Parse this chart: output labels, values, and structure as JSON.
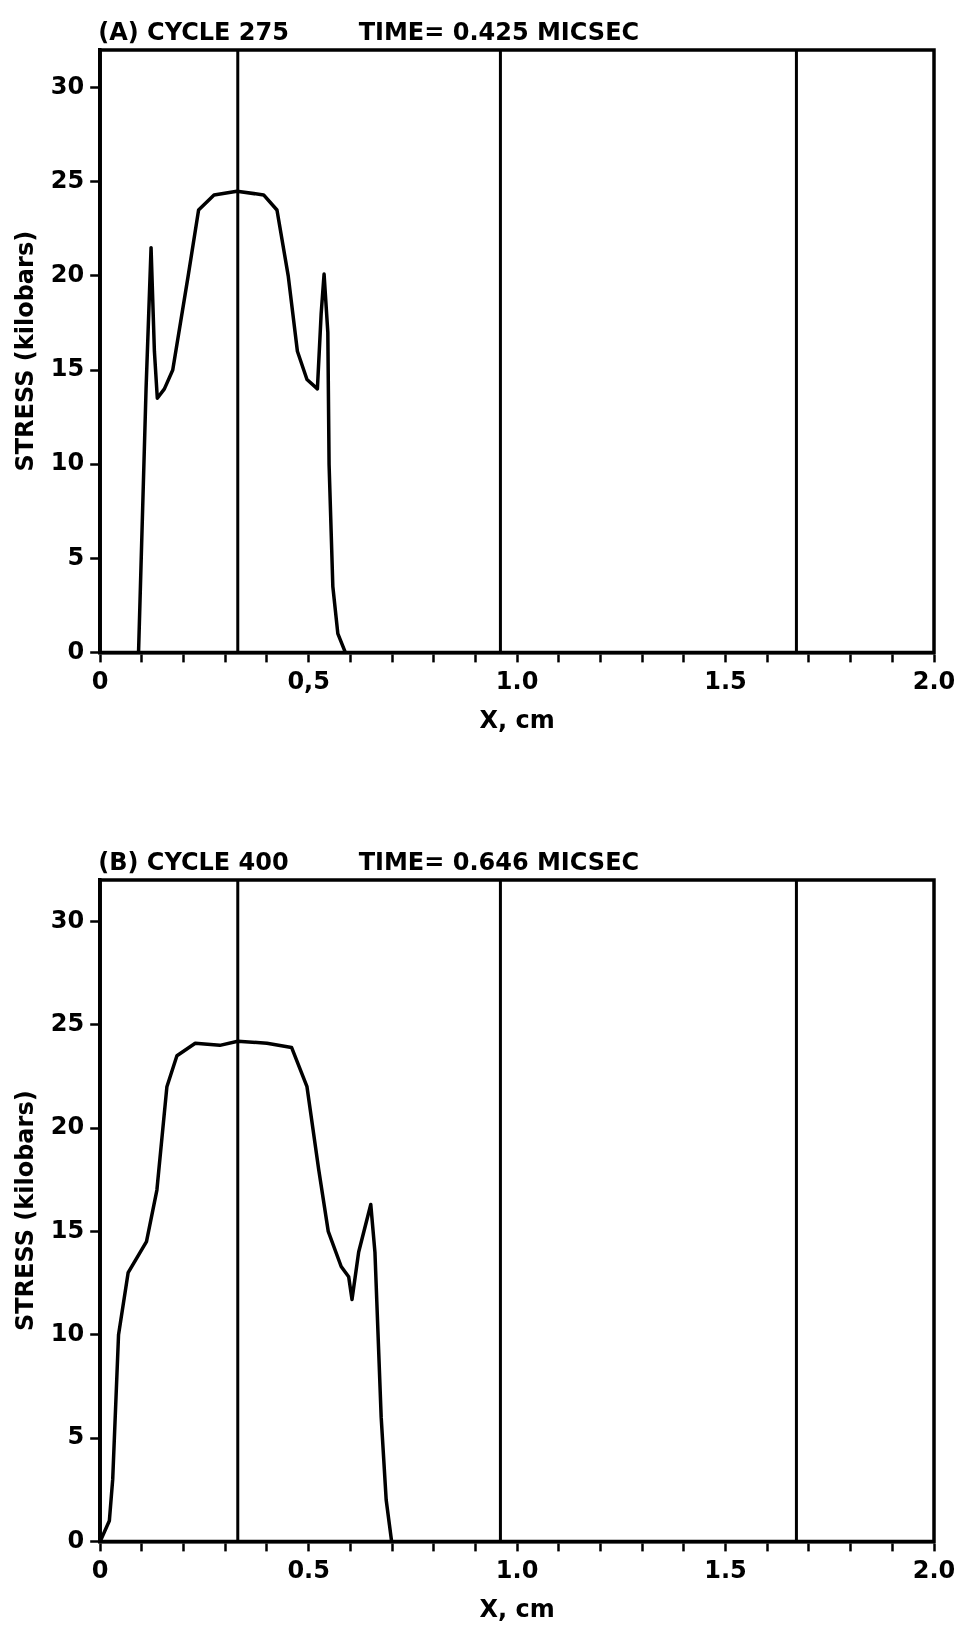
{
  "chart_data": [
    {
      "type": "line",
      "title": "(A) CYCLE 275",
      "subtitle": "TIME= 0.425 MICSEC",
      "xlabel": "X, cm",
      "ylabel": "STRESS (kilobars)",
      "series": [
        {
          "color": "#000000",
          "x": [
            0.092,
            0.11,
            0.122,
            0.13,
            0.137,
            0.154,
            0.174,
            0.211,
            0.236,
            0.273,
            0.328,
            0.392,
            0.424,
            0.451,
            0.473,
            0.496,
            0.521,
            0.53,
            0.537,
            0.546,
            0.549,
            0.558,
            0.57,
            0.588
          ],
          "values": [
            0,
            14,
            21.5,
            16,
            13.5,
            14,
            15,
            20,
            23.5,
            24.3,
            24.5,
            24.3,
            23.5,
            20,
            16,
            14.5,
            14,
            18,
            20.1,
            17,
            10,
            3.5,
            1,
            0
          ]
        }
      ],
      "xlim": [
        0,
        2
      ],
      "ylim": [
        0,
        32
      ],
      "xticks": [
        0,
        {
          "value": 0.1,
          "label": null
        },
        {
          "value": 0.2,
          "label": null
        },
        {
          "value": 0.3,
          "label": null
        },
        {
          "value": 0.4,
          "label": null
        },
        {
          "value": 0.5,
          "label": "0,5"
        },
        {
          "value": 0.6,
          "label": null
        },
        {
          "value": 0.7,
          "label": null
        },
        {
          "value": 0.8,
          "label": null
        },
        {
          "value": 0.9,
          "label": null
        },
        {
          "value": 1,
          "label": "1.0"
        },
        {
          "value": 1.1,
          "label": null
        },
        {
          "value": 1.2,
          "label": null
        },
        {
          "value": 1.3,
          "label": null
        },
        {
          "value": 1.4,
          "label": null
        },
        1.5,
        {
          "value": 1.6,
          "label": null
        },
        {
          "value": 1.7,
          "label": null
        },
        {
          "value": 1.8,
          "label": null
        },
        {
          "value": 1.9,
          "label": null
        },
        {
          "value": 2,
          "label": "2.0"
        }
      ],
      "yticks": [
        0,
        5,
        10,
        15,
        20,
        25,
        30
      ],
      "ref_lines": [
        {
          "axis": "x",
          "value": 0.33,
          "color": "#000000"
        },
        {
          "axis": "x",
          "value": 0.96,
          "color": "#000000"
        },
        {
          "axis": "x",
          "value": 1.67,
          "color": "#000000"
        }
      ],
      "grid": false,
      "legend": false,
      "marker": "none",
      "line_style": "solid"
    },
    {
      "type": "line",
      "title": "(B) CYCLE 400",
      "subtitle": "TIME= 0.646 MICSEC",
      "xlabel": "X, cm",
      "ylabel": "STRESS (kilobars)",
      "series": [
        {
          "color": "#000000",
          "x": [
            0,
            0.022,
            0.03,
            0.044,
            0.067,
            0.111,
            0.136,
            0.16,
            0.184,
            0.228,
            0.287,
            0.33,
            0.4,
            0.459,
            0.496,
            0.524,
            0.547,
            0.578,
            0.596,
            0.604,
            0.62,
            0.649,
            0.659,
            0.674,
            0.686,
            0.699
          ],
          "values": [
            0,
            1,
            3,
            10,
            13,
            14.5,
            17,
            22,
            23.5,
            24.1,
            24,
            24.2,
            24.1,
            23.9,
            22,
            18,
            15,
            13.3,
            12.8,
            11.7,
            14,
            16.3,
            14,
            6,
            2,
            0
          ]
        }
      ],
      "xlim": [
        0,
        2
      ],
      "ylim": [
        0,
        32
      ],
      "xticks": [
        0,
        {
          "value": 0.1,
          "label": null
        },
        {
          "value": 0.2,
          "label": null
        },
        {
          "value": 0.3,
          "label": null
        },
        {
          "value": 0.4,
          "label": null
        },
        0.5,
        {
          "value": 0.6,
          "label": null
        },
        {
          "value": 0.7,
          "label": null
        },
        {
          "value": 0.8,
          "label": null
        },
        {
          "value": 0.9,
          "label": null
        },
        {
          "value": 1,
          "label": "1.0"
        },
        {
          "value": 1.1,
          "label": null
        },
        {
          "value": 1.2,
          "label": null
        },
        {
          "value": 1.3,
          "label": null
        },
        {
          "value": 1.4,
          "label": null
        },
        1.5,
        {
          "value": 1.6,
          "label": null
        },
        {
          "value": 1.7,
          "label": null
        },
        {
          "value": 1.8,
          "label": null
        },
        {
          "value": 1.9,
          "label": null
        },
        {
          "value": 2,
          "label": "2.0"
        }
      ],
      "yticks": [
        0,
        5,
        10,
        15,
        20,
        25,
        30
      ],
      "ref_lines": [
        {
          "axis": "x",
          "value": 0.33,
          "color": "#000000"
        },
        {
          "axis": "x",
          "value": 0.96,
          "color": "#000000"
        },
        {
          "axis": "x",
          "value": 1.67,
          "color": "#000000"
        }
      ],
      "grid": false,
      "legend": false,
      "marker": "none",
      "line_style": "solid"
    }
  ]
}
